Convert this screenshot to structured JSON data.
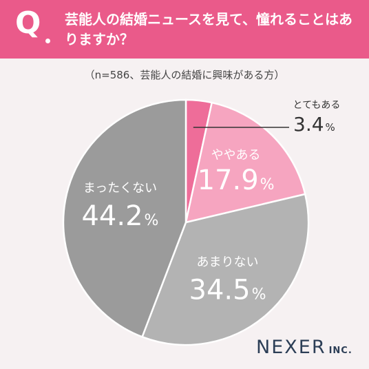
{
  "header": {
    "q_label": "Q",
    "question": "芸能人の結婚ニュースを見て、憧れることはありますか？"
  },
  "note": "（n=586、芸能人の結婚に興味がある方）",
  "colors": {
    "header_bg": "#ea5a8a",
    "slice_1": "#ee6d99",
    "slice_2": "#f6a5c0",
    "slice_3": "#b3b3b3",
    "slice_4": "#9b9b9b"
  },
  "chart_data": {
    "type": "pie",
    "categories": [
      "とてもある",
      "ややある",
      "あまりない",
      "まったくない"
    ],
    "values": [
      3.4,
      17.9,
      34.5,
      44.2
    ],
    "labels": [
      "3.4",
      "17.9",
      "34.5",
      "44.2"
    ],
    "unit": "%"
  },
  "logo": {
    "main": "NEXER",
    "sub": "INC."
  }
}
